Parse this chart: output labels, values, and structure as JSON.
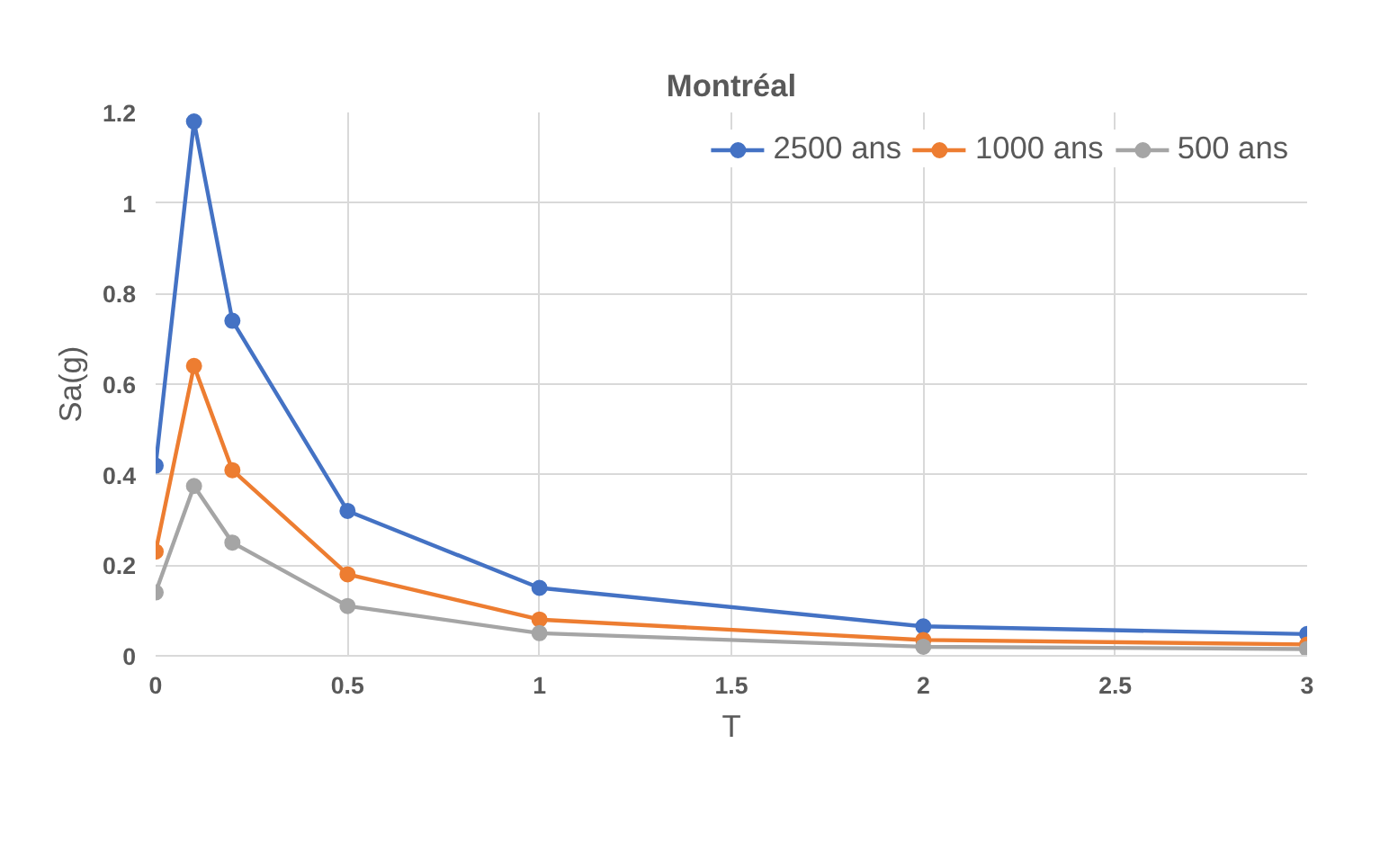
{
  "chart_data": {
    "type": "line",
    "title": "Montréal",
    "xlabel": "T",
    "ylabel": "Sa(g)",
    "x": [
      0,
      0.1,
      0.2,
      0.5,
      1,
      2,
      3
    ],
    "series": [
      {
        "name": "2500 ans",
        "color": "#4472c4",
        "values": [
          0.42,
          1.18,
          0.74,
          0.32,
          0.15,
          0.065,
          0.048
        ]
      },
      {
        "name": "1000 ans",
        "color": "#ed7d31",
        "values": [
          0.23,
          0.64,
          0.41,
          0.18,
          0.08,
          0.035,
          0.025
        ]
      },
      {
        "name": "500 ans",
        "color": "#a5a5a5",
        "values": [
          0.14,
          0.375,
          0.25,
          0.11,
          0.05,
          0.02,
          0.015
        ]
      }
    ],
    "xlim": [
      0,
      3
    ],
    "xticks": [
      0,
      0.5,
      1,
      1.5,
      2,
      2.5,
      3
    ],
    "ylim": [
      0,
      1.2
    ],
    "yticks": [
      0,
      0.2,
      0.4,
      0.6,
      0.8,
      1,
      1.2
    ],
    "grid": true,
    "legend": "top right",
    "marker": "circle",
    "line_style": "solid"
  }
}
